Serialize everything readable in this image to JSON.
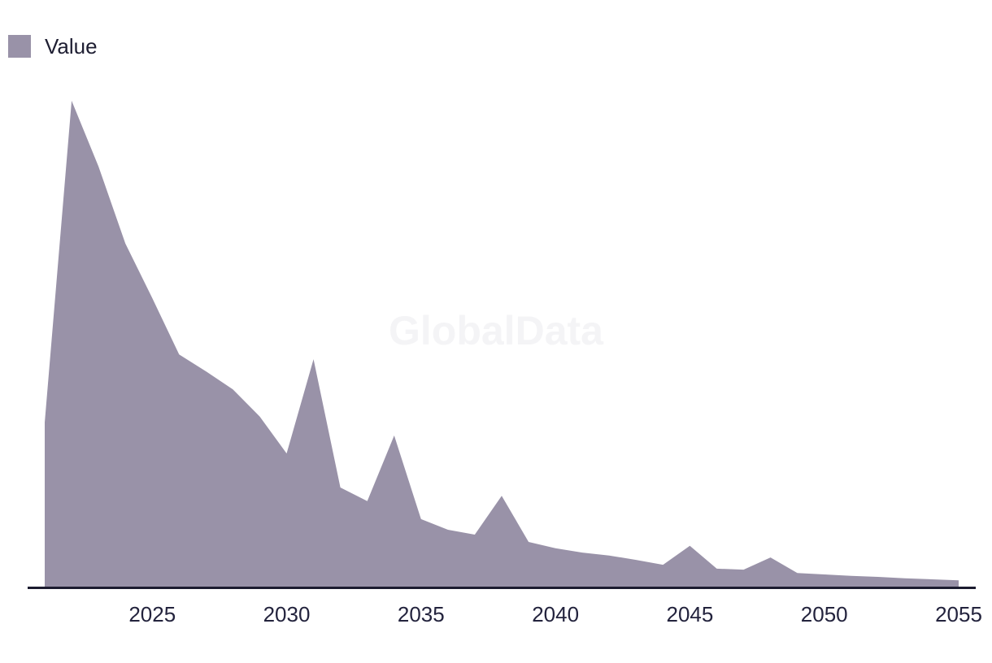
{
  "legend": {
    "label": "Value",
    "swatch_color": "#9992a8"
  },
  "watermark": "GlobalData",
  "colors": {
    "background": "#ffffff",
    "area_fill": "#9992a8",
    "axis_line": "#1b1b2f",
    "tick_text": "#23233d",
    "legend_text": "#1e1e32",
    "watermark_text": "#f4f4f6"
  },
  "x_axis": {
    "tick_labels": [
      "2025",
      "2030",
      "2035",
      "2040",
      "2045",
      "2050",
      "2055"
    ]
  },
  "chart_data": {
    "type": "area",
    "title": "",
    "xlabel": "",
    "ylabel": "",
    "x_range": [
      2021,
      2055
    ],
    "ylim": [
      0,
      100
    ],
    "y_axis_visible": false,
    "grid": false,
    "legend_position": "top-left",
    "value_scale_note": "No y-axis shown in image; values are normalized so the 2022 peak = 100.",
    "series": [
      {
        "name": "Value",
        "x": [
          2021,
          2022,
          2023,
          2024,
          2025,
          2026,
          2027,
          2028,
          2029,
          2030,
          2031,
          2032,
          2033,
          2034,
          2035,
          2036,
          2037,
          2038,
          2039,
          2040,
          2041,
          2042,
          2043,
          2044,
          2045,
          2046,
          2047,
          2048,
          2049,
          2050,
          2051,
          2052,
          2053,
          2054,
          2055
        ],
        "values": [
          33.8,
          100,
          86.5,
          70.6,
          59.4,
          47.8,
          44.3,
          40.6,
          35.0,
          27.4,
          46.8,
          20.4,
          17.6,
          31.1,
          13.9,
          11.7,
          10.7,
          18.7,
          9.2,
          7.9,
          7.0,
          6.4,
          5.5,
          4.5,
          8.4,
          3.7,
          3.5,
          6.0,
          2.8,
          2.5,
          2.2,
          2.0,
          1.7,
          1.5,
          1.3
        ]
      }
    ]
  }
}
